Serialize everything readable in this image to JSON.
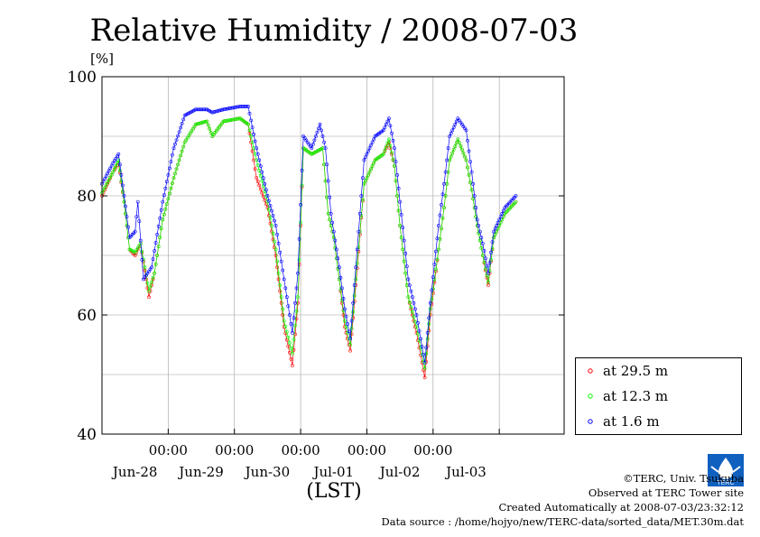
{
  "chart_data": {
    "type": "line",
    "title": "Relative Humidity / 2008-07-03",
    "ylabel": "[%]",
    "xlabel": "(LST)",
    "ylim": [
      40,
      100
    ],
    "yticks": [
      40,
      60,
      80,
      100
    ],
    "xlim": [
      "2008-06-27 00:00",
      "2008-07-03 23:30"
    ],
    "x_time_ticks": [
      "00:00",
      "00:00",
      "00:00",
      "00:00",
      "00:00"
    ],
    "x_day_labels": [
      "Jun-28",
      "Jun-29",
      "Jun-30",
      "Jul-01",
      "Jul-02",
      "Jul-03"
    ],
    "grid": true,
    "legend_position": "bottom-right",
    "series": [
      {
        "name": "at 29.5 m",
        "color": "#ff0000",
        "values": [
          [
            "06-27 00:00",
            80
          ],
          [
            "06-27 04:00",
            84
          ],
          [
            "06-27 06:00",
            85.5
          ],
          [
            "06-27 08:00",
            79
          ],
          [
            "06-27 10:00",
            71
          ],
          [
            "06-27 12:00",
            70
          ],
          [
            "06-27 14:00",
            72
          ],
          [
            "06-27 17:00",
            63
          ],
          [
            "06-27 19:00",
            67
          ],
          [
            "06-27 22:00",
            76
          ],
          [
            "06-28 02:00",
            83
          ],
          [
            "06-28 06:00",
            89
          ],
          [
            "06-28 10:00",
            92
          ],
          [
            "06-28 14:00",
            92.5
          ],
          [
            "06-28 16:00",
            90
          ],
          [
            "06-28 20:00",
            92.5
          ],
          [
            "06-29 02:00",
            93
          ],
          [
            "06-29 05:00",
            92
          ],
          [
            "06-29 08:00",
            83
          ],
          [
            "06-29 12:00",
            78
          ],
          [
            "06-29 15:00",
            70
          ],
          [
            "06-29 18:00",
            58
          ],
          [
            "06-29 21:00",
            51.5
          ],
          [
            "06-29 23:00",
            62
          ],
          [
            "06-30 01:00",
            88
          ],
          [
            "06-30 04:00",
            87
          ],
          [
            "06-30 08:00",
            88
          ],
          [
            "06-30 10:00",
            77
          ],
          [
            "06-30 12:00",
            73
          ],
          [
            "06-30 14:00",
            66
          ],
          [
            "06-30 16:00",
            58
          ],
          [
            "06-30 18:00",
            54
          ],
          [
            "06-30 20:00",
            65
          ],
          [
            "06-30 23:00",
            82
          ],
          [
            "07-01 03:00",
            86
          ],
          [
            "07-01 06:00",
            87
          ],
          [
            "07-01 08:00",
            89
          ],
          [
            "07-01 10:00",
            85
          ],
          [
            "07-01 12:00",
            75
          ],
          [
            "07-01 15:00",
            63
          ],
          [
            "07-01 18:00",
            57
          ],
          [
            "07-01 21:00",
            49.5
          ],
          [
            "07-01 23:00",
            60
          ],
          [
            "07-02 02:00",
            71
          ],
          [
            "07-02 04:00",
            78
          ],
          [
            "07-02 06:00",
            86
          ],
          [
            "07-02 09:00",
            89.5
          ],
          [
            "07-02 12:00",
            86
          ],
          [
            "07-02 14:00",
            81
          ],
          [
            "07-02 16:00",
            75
          ],
          [
            "07-02 18:00",
            70
          ],
          [
            "07-02 20:00",
            65
          ],
          [
            "07-02 22:00",
            73
          ],
          [
            "07-03 02:00",
            77
          ],
          [
            "07-03 06:00",
            79
          ]
        ]
      },
      {
        "name": "at 12.3 m",
        "color": "#00ff00",
        "values": [
          [
            "06-27 00:00",
            80.5
          ],
          [
            "06-27 04:00",
            84
          ],
          [
            "06-27 06:00",
            86
          ],
          [
            "06-27 08:00",
            79
          ],
          [
            "06-27 10:00",
            71
          ],
          [
            "06-27 12:00",
            70.5
          ],
          [
            "06-27 14:00",
            72
          ],
          [
            "06-27 17:00",
            64
          ],
          [
            "06-27 19:00",
            67
          ],
          [
            "06-27 22:00",
            76
          ],
          [
            "06-28 02:00",
            83
          ],
          [
            "06-28 06:00",
            89
          ],
          [
            "06-28 10:00",
            92
          ],
          [
            "06-28 14:00",
            92.5
          ],
          [
            "06-28 16:00",
            90
          ],
          [
            "06-28 20:00",
            92.5
          ],
          [
            "06-29 02:00",
            93
          ],
          [
            "06-29 05:00",
            92
          ],
          [
            "06-29 08:00",
            86
          ],
          [
            "06-29 12:00",
            79
          ],
          [
            "06-29 15:00",
            71
          ],
          [
            "06-29 18:00",
            59
          ],
          [
            "06-29 21:00",
            53.5
          ],
          [
            "06-29 23:00",
            63
          ],
          [
            "06-30 01:00",
            88
          ],
          [
            "06-30 04:00",
            87
          ],
          [
            "06-30 08:00",
            88
          ],
          [
            "06-30 10:00",
            77
          ],
          [
            "06-30 12:00",
            73
          ],
          [
            "06-30 14:00",
            66
          ],
          [
            "06-30 16:00",
            59
          ],
          [
            "06-30 18:00",
            55
          ],
          [
            "06-30 20:00",
            66
          ],
          [
            "06-30 23:00",
            82
          ],
          [
            "07-01 03:00",
            86
          ],
          [
            "07-01 06:00",
            87
          ],
          [
            "07-01 08:00",
            89.5
          ],
          [
            "07-01 10:00",
            85
          ],
          [
            "07-01 12:00",
            75
          ],
          [
            "07-01 15:00",
            63
          ],
          [
            "07-01 18:00",
            58
          ],
          [
            "07-01 21:00",
            51
          ],
          [
            "07-01 23:00",
            61
          ],
          [
            "07-02 02:00",
            71
          ],
          [
            "07-02 04:00",
            78
          ],
          [
            "07-02 06:00",
            86
          ],
          [
            "07-02 09:00",
            89.5
          ],
          [
            "07-02 12:00",
            86
          ],
          [
            "07-02 14:00",
            81
          ],
          [
            "07-02 16:00",
            75
          ],
          [
            "07-02 18:00",
            70
          ],
          [
            "07-02 20:00",
            65.5
          ],
          [
            "07-02 22:00",
            73
          ],
          [
            "07-03 02:00",
            77
          ],
          [
            "07-03 06:00",
            79
          ]
        ]
      },
      {
        "name": "at 1.6 m",
        "color": "#0000ff",
        "values": [
          [
            "06-27 00:00",
            82
          ],
          [
            "06-27 04:00",
            85.5
          ],
          [
            "06-27 06:00",
            87
          ],
          [
            "06-27 08:00",
            80
          ],
          [
            "06-27 10:00",
            73
          ],
          [
            "06-27 12:00",
            74
          ],
          [
            "06-27 13:00",
            79
          ],
          [
            "06-27 15:00",
            66
          ],
          [
            "06-27 18:00",
            68
          ],
          [
            "06-27 22:00",
            79
          ],
          [
            "06-28 02:00",
            88
          ],
          [
            "06-28 06:00",
            93.5
          ],
          [
            "06-28 10:00",
            94.5
          ],
          [
            "06-28 14:00",
            94.5
          ],
          [
            "06-28 16:00",
            94
          ],
          [
            "06-28 20:00",
            94.5
          ],
          [
            "06-29 02:00",
            95
          ],
          [
            "06-29 05:00",
            95
          ],
          [
            "06-29 08:00",
            88
          ],
          [
            "06-29 12:00",
            80
          ],
          [
            "06-29 15:00",
            75
          ],
          [
            "06-29 18:00",
            66
          ],
          [
            "06-29 21:00",
            57
          ],
          [
            "06-29 23:00",
            67
          ],
          [
            "06-30 01:00",
            90
          ],
          [
            "06-30 04:00",
            88
          ],
          [
            "06-30 07:00",
            92
          ],
          [
            "06-30 09:00",
            88
          ],
          [
            "06-30 11:00",
            77
          ],
          [
            "06-30 14:00",
            68
          ],
          [
            "06-30 16:00",
            61
          ],
          [
            "06-30 18:00",
            56
          ],
          [
            "06-30 20:00",
            68
          ],
          [
            "06-30 23:00",
            86
          ],
          [
            "07-01 03:00",
            90
          ],
          [
            "07-01 06:00",
            91
          ],
          [
            "07-01 08:00",
            93
          ],
          [
            "07-01 10:00",
            88
          ],
          [
            "07-01 12:00",
            79
          ],
          [
            "07-01 15:00",
            66
          ],
          [
            "07-01 18:00",
            60
          ],
          [
            "07-01 21:00",
            52
          ],
          [
            "07-01 23:00",
            62
          ],
          [
            "07-02 02:00",
            75
          ],
          [
            "07-02 04:00",
            82
          ],
          [
            "07-02 06:00",
            90
          ],
          [
            "07-02 09:00",
            93
          ],
          [
            "07-02 12:00",
            91
          ],
          [
            "07-02 14:00",
            84
          ],
          [
            "07-02 16:00",
            76
          ],
          [
            "07-02 18:00",
            72
          ],
          [
            "07-02 20:00",
            67
          ],
          [
            "07-02 22:00",
            74
          ],
          [
            "07-03 02:00",
            78
          ],
          [
            "07-03 06:00",
            80
          ]
        ]
      }
    ]
  },
  "credits": {
    "line1": "©TERC, Univ. Tsukuba",
    "line2": "Observed at TERC Tower site",
    "line3": "Created Automatically at 2008-07-03/23:32:12",
    "line4": "Data source : /home/hojyo/new/TERC-data/sorted_data/MET.30m.dat"
  },
  "logo_text": "TERC"
}
